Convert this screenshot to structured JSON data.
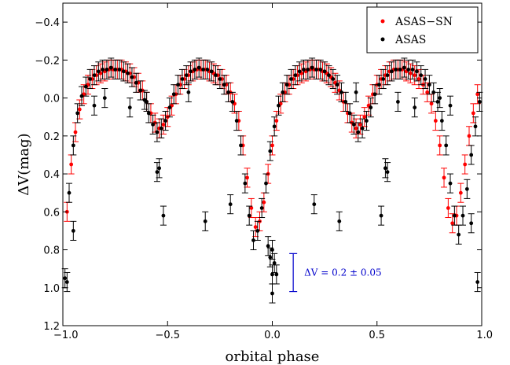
{
  "chart_data": {
    "type": "scatter",
    "xlabel": "orbital phase",
    "ylabel": "ΔV(mag)",
    "xlim": [
      -1.0,
      1.0
    ],
    "ylim": [
      1.2,
      -0.5
    ],
    "y_inverted": true,
    "grid": false,
    "legend_position": "top-right",
    "x_ticks": [
      -1.0,
      -0.5,
      0.0,
      0.5,
      1.0
    ],
    "x_tick_labels": [
      "−1.0",
      "−0.5",
      "0.0",
      "0.5",
      "1.0"
    ],
    "y_ticks": [
      -0.4,
      -0.2,
      0.0,
      0.2,
      0.4,
      0.6,
      0.8,
      1.0,
      1.2
    ],
    "y_tick_labels": [
      "−0.4",
      "−0.2",
      "0.0",
      "0.2",
      "0.4",
      "0.6",
      "0.8",
      "1.0",
      "1.2"
    ],
    "series": [
      {
        "name": "ASAS−SN",
        "color": "#ff0000",
        "x": [
          -0.98,
          -0.96,
          -0.94,
          -0.92,
          -0.9,
          -0.88,
          -0.86,
          -0.84,
          -0.82,
          -0.8,
          -0.78,
          -0.76,
          -0.74,
          -0.72,
          -0.7,
          -0.68,
          -0.66,
          -0.64,
          -0.62,
          -0.6,
          -0.58,
          -0.56,
          -0.54,
          -0.52,
          -0.5,
          -0.48,
          -0.46,
          -0.44,
          -0.42,
          -0.4,
          -0.38,
          -0.36,
          -0.34,
          -0.32,
          -0.3,
          -0.28,
          -0.26,
          -0.24,
          -0.22,
          -0.2,
          -0.18,
          -0.16,
          -0.14,
          -0.12,
          -0.1,
          -0.08,
          -0.06,
          -0.04,
          -0.02,
          0.0,
          0.02,
          0.04,
          0.06,
          0.08,
          0.1,
          0.12,
          0.14,
          0.16,
          0.18,
          0.2,
          0.22,
          0.24,
          0.26,
          0.28,
          0.3,
          0.32,
          0.34,
          0.36,
          0.38,
          0.4,
          0.42,
          0.44,
          0.46,
          0.48,
          0.5,
          0.52,
          0.54,
          0.56,
          0.58,
          0.6,
          0.62,
          0.64,
          0.66,
          0.68,
          0.7,
          0.72,
          0.74,
          0.76,
          0.78,
          0.8,
          0.82,
          0.84,
          0.86,
          0.88,
          0.9,
          0.92,
          0.94,
          0.96,
          0.98
        ],
        "y": [
          0.6,
          0.35,
          0.18,
          0.06,
          -0.02,
          -0.07,
          -0.1,
          -0.12,
          -0.13,
          -0.14,
          -0.15,
          -0.15,
          -0.15,
          -0.15,
          -0.14,
          -0.13,
          -0.11,
          -0.08,
          -0.04,
          0.02,
          0.08,
          0.13,
          0.16,
          0.14,
          0.1,
          0.04,
          -0.02,
          -0.07,
          -0.1,
          -0.12,
          -0.14,
          -0.15,
          -0.15,
          -0.15,
          -0.14,
          -0.13,
          -0.12,
          -0.1,
          -0.07,
          -0.03,
          0.03,
          0.12,
          0.25,
          0.42,
          0.58,
          0.68,
          0.65,
          0.55,
          0.4,
          0.25,
          0.12,
          0.03,
          -0.03,
          -0.07,
          -0.1,
          -0.12,
          -0.13,
          -0.14,
          -0.15,
          -0.15,
          -0.15,
          -0.14,
          -0.13,
          -0.11,
          -0.08,
          -0.04,
          0.02,
          0.08,
          0.13,
          0.16,
          0.14,
          0.1,
          0.04,
          -0.02,
          -0.07,
          -0.1,
          -0.12,
          -0.14,
          -0.15,
          -0.15,
          -0.15,
          -0.14,
          -0.13,
          -0.12,
          -0.1,
          -0.07,
          -0.03,
          0.03,
          0.12,
          0.25,
          0.42,
          0.58,
          0.66,
          0.62,
          0.5,
          0.35,
          0.2,
          0.08,
          -0.02
        ]
      },
      {
        "name": "ASAS",
        "color": "#000000",
        "x": [
          -0.99,
          -0.97,
          -0.95,
          -0.93,
          -0.91,
          -0.89,
          -0.87,
          -0.85,
          -0.83,
          -0.81,
          -0.79,
          -0.77,
          -0.75,
          -0.73,
          -0.71,
          -0.69,
          -0.67,
          -0.65,
          -0.63,
          -0.61,
          -0.59,
          -0.57,
          -0.55,
          -0.53,
          -0.51,
          -0.49,
          -0.47,
          -0.45,
          -0.43,
          -0.41,
          -0.39,
          -0.37,
          -0.35,
          -0.33,
          -0.31,
          -0.29,
          -0.27,
          -0.25,
          -0.23,
          -0.21,
          -0.19,
          -0.17,
          -0.15,
          -0.13,
          -0.11,
          -0.09,
          -0.07,
          -0.05,
          -0.03,
          -0.01,
          0.01,
          0.03,
          0.05,
          0.07,
          0.09,
          0.11,
          0.13,
          0.15,
          0.17,
          0.19,
          0.21,
          0.23,
          0.25,
          0.27,
          0.29,
          0.31,
          0.33,
          0.35,
          0.37,
          0.39,
          0.41,
          0.43,
          0.45,
          0.47,
          0.49,
          0.51,
          0.53,
          0.55,
          0.57,
          0.59,
          0.61,
          0.63,
          0.65,
          0.67,
          0.69,
          0.71,
          0.73,
          0.75,
          0.77,
          0.79,
          0.81,
          0.83,
          0.85,
          0.87,
          0.89,
          0.91,
          0.93,
          0.95,
          0.97,
          0.99,
          -0.54,
          -0.52,
          -0.55,
          -0.32,
          -0.2,
          -0.85,
          -0.68,
          -0.6,
          -0.8,
          -0.4,
          0.54,
          0.52,
          0.55,
          0.32,
          0.2,
          0.85,
          0.68,
          0.6,
          0.8,
          0.4,
          0.0,
          -0.01,
          0.01,
          0.0,
          0.02,
          -0.02,
          0.0,
          -0.98,
          0.98,
          -0.95,
          0.95
        ],
        "y": [
          0.95,
          0.5,
          0.25,
          0.08,
          -0.01,
          -0.06,
          -0.1,
          -0.12,
          -0.14,
          -0.15,
          -0.15,
          -0.16,
          -0.15,
          -0.15,
          -0.14,
          -0.13,
          -0.11,
          -0.08,
          -0.04,
          0.01,
          0.08,
          0.14,
          0.18,
          0.16,
          0.12,
          0.05,
          -0.02,
          -0.07,
          -0.1,
          -0.12,
          -0.14,
          -0.15,
          -0.16,
          -0.15,
          -0.15,
          -0.14,
          -0.12,
          -0.1,
          -0.07,
          -0.03,
          0.02,
          0.12,
          0.25,
          0.45,
          0.62,
          0.75,
          0.7,
          0.58,
          0.45,
          0.28,
          0.15,
          0.04,
          -0.03,
          -0.07,
          -0.1,
          -0.12,
          -0.14,
          -0.15,
          -0.15,
          -0.16,
          -0.15,
          -0.15,
          -0.14,
          -0.12,
          -0.1,
          -0.07,
          -0.03,
          0.02,
          0.08,
          0.14,
          0.18,
          0.16,
          0.12,
          0.05,
          -0.02,
          -0.07,
          -0.1,
          -0.12,
          -0.14,
          -0.15,
          -0.15,
          -0.16,
          -0.15,
          -0.15,
          -0.14,
          -0.12,
          -0.1,
          -0.07,
          -0.03,
          0.02,
          0.12,
          0.25,
          0.45,
          0.62,
          0.72,
          0.62,
          0.48,
          0.3,
          0.15,
          0.02,
          0.37,
          0.62,
          0.39,
          0.65,
          0.56,
          0.04,
          0.05,
          0.02,
          0.0,
          -0.03,
          0.37,
          0.62,
          0.39,
          0.65,
          0.56,
          0.04,
          0.05,
          0.02,
          0.0,
          -0.03,
          0.8,
          0.84,
          0.87,
          0.93,
          0.93,
          0.78,
          1.03,
          0.97,
          0.97,
          0.7,
          0.66
        ]
      }
    ],
    "annotation": {
      "text": "ΔV = 0.2 ± 0.05",
      "color": "#0000cc",
      "bar_x": 0.1,
      "bar_y": [
        0.82,
        1.02
      ]
    }
  }
}
